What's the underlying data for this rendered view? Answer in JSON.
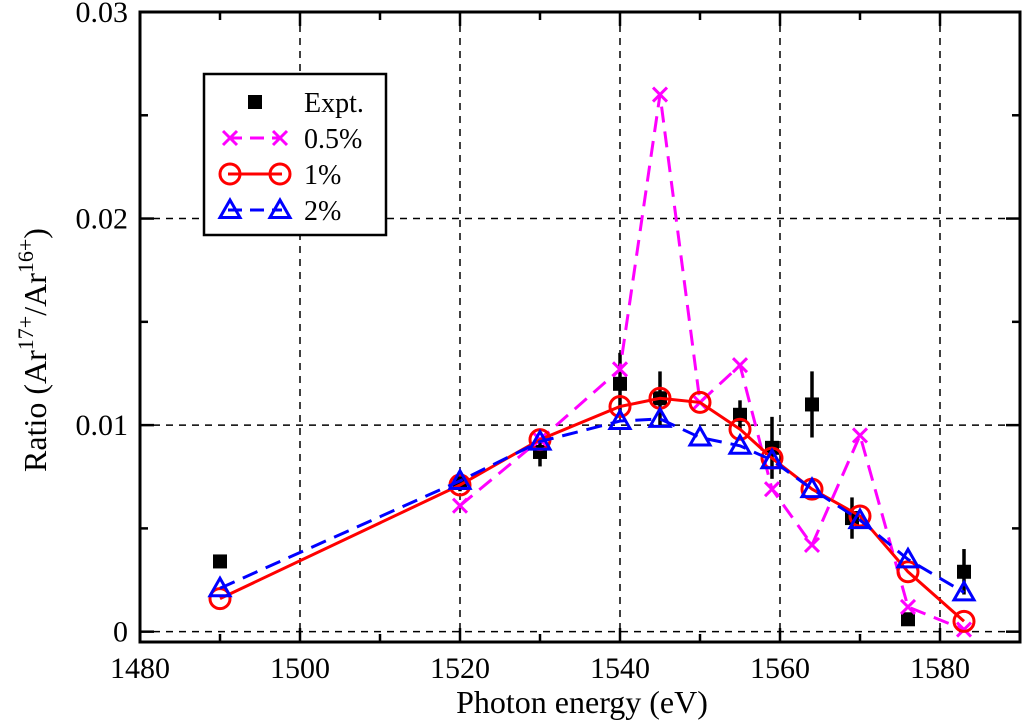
{
  "chart_data": {
    "type": "line",
    "xlabel": "Photon energy (eV)",
    "ylabel": {
      "prefix": "Ratio (Ar",
      "sup1": "17+",
      "mid": "/Ar",
      "sup2": "16+",
      "suffix": ")"
    },
    "xlim": [
      1480,
      1590
    ],
    "ylim": [
      -0.0005,
      0.03
    ],
    "x_ticks": [
      1480,
      1500,
      1520,
      1540,
      1560,
      1580
    ],
    "x_tick_labels": [
      "1480",
      "1500",
      "1520",
      "1540",
      "1560",
      "1580"
    ],
    "y_ticks": [
      0,
      0.01,
      0.02,
      0.03
    ],
    "y_tick_labels": [
      "0",
      "0.01",
      "0.02",
      "0.03"
    ],
    "grid": true,
    "legend_position": "top-left",
    "series": [
      {
        "name": "Expt.",
        "style": "marker-square",
        "color": "#000000",
        "points": [
          {
            "x": 1490,
            "y": 0.0034,
            "err": 0.0003
          },
          {
            "x": 1520,
            "y": 0.0072,
            "err": 0.0004
          },
          {
            "x": 1530,
            "y": 0.0087,
            "err": 0.0007
          },
          {
            "x": 1540,
            "y": 0.012,
            "err": 0.0015
          },
          {
            "x": 1545,
            "y": 0.0113,
            "err": 0.0013
          },
          {
            "x": 1555,
            "y": 0.0105,
            "err": 0.0007
          },
          {
            "x": 1559,
            "y": 0.0089,
            "err": 0.0015
          },
          {
            "x": 1564,
            "y": 0.011,
            "err": 0.0016
          },
          {
            "x": 1569,
            "y": 0.0055,
            "err": 0.001
          },
          {
            "x": 1576,
            "y": 0.0006,
            "err": 0.0002
          },
          {
            "x": 1583,
            "y": 0.0029,
            "err": 0.0011
          }
        ]
      },
      {
        "name": "0.5%",
        "style": "dashed-x",
        "color": "#ff00ff",
        "points": [
          {
            "x": 1520,
            "y": 0.0061
          },
          {
            "x": 1530,
            "y": 0.0093
          },
          {
            "x": 1540,
            "y": 0.0127
          },
          {
            "x": 1545,
            "y": 0.026
          },
          {
            "x": 1550,
            "y": 0.0111
          },
          {
            "x": 1555,
            "y": 0.0129
          },
          {
            "x": 1559,
            "y": 0.0069
          },
          {
            "x": 1564,
            "y": 0.0042
          },
          {
            "x": 1570,
            "y": 0.0095
          },
          {
            "x": 1576,
            "y": 0.0012
          },
          {
            "x": 1583,
            "y": 0.0001
          }
        ]
      },
      {
        "name": "1%",
        "style": "solid-circle",
        "color": "#ff0000",
        "points": [
          {
            "x": 1490,
            "y": 0.0016
          },
          {
            "x": 1520,
            "y": 0.0071
          },
          {
            "x": 1530,
            "y": 0.0093
          },
          {
            "x": 1540,
            "y": 0.0109
          },
          {
            "x": 1545,
            "y": 0.0113
          },
          {
            "x": 1550,
            "y": 0.0111
          },
          {
            "x": 1555,
            "y": 0.0098
          },
          {
            "x": 1559,
            "y": 0.0084
          },
          {
            "x": 1564,
            "y": 0.0069
          },
          {
            "x": 1570,
            "y": 0.0056
          },
          {
            "x": 1576,
            "y": 0.0029
          },
          {
            "x": 1583,
            "y": 0.0005
          }
        ]
      },
      {
        "name": "2%",
        "style": "dashed-triangle",
        "color": "#0000ff",
        "points": [
          {
            "x": 1490,
            "y": 0.0021
          },
          {
            "x": 1520,
            "y": 0.0073
          },
          {
            "x": 1530,
            "y": 0.0092
          },
          {
            "x": 1540,
            "y": 0.0102
          },
          {
            "x": 1545,
            "y": 0.0103
          },
          {
            "x": 1550,
            "y": 0.0094
          },
          {
            "x": 1555,
            "y": 0.009
          },
          {
            "x": 1559,
            "y": 0.0083
          },
          {
            "x": 1564,
            "y": 0.0069
          },
          {
            "x": 1570,
            "y": 0.0054
          },
          {
            "x": 1576,
            "y": 0.0035
          },
          {
            "x": 1583,
            "y": 0.0019
          }
        ]
      }
    ]
  }
}
